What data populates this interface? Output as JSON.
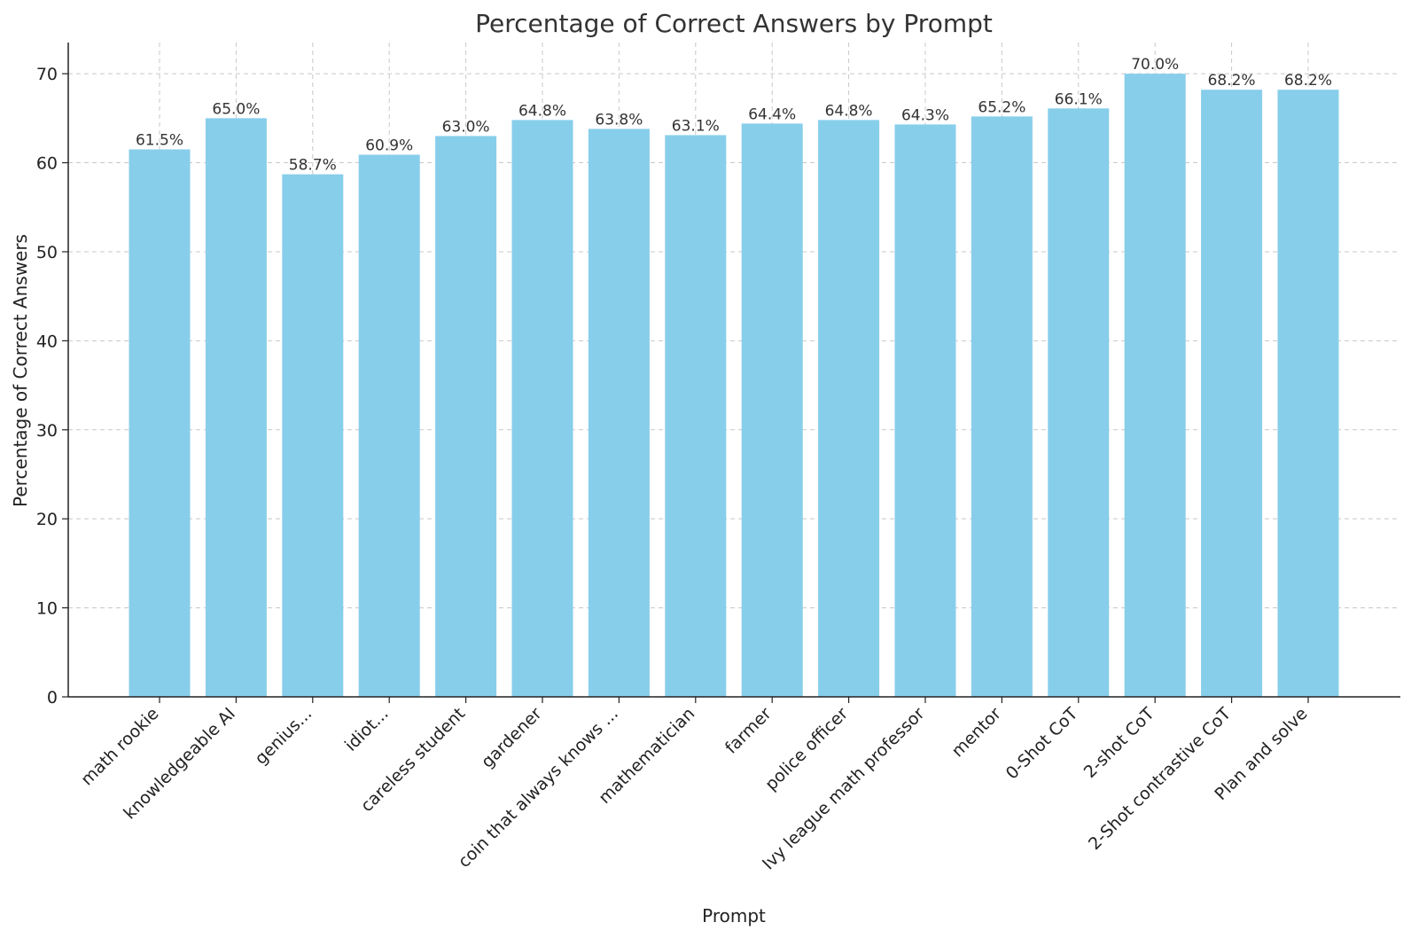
{
  "chart_data": {
    "type": "bar",
    "title": "Percentage of Correct Answers by Prompt",
    "xlabel": "Prompt",
    "ylabel": "Percentage of Correct Answers",
    "categories": [
      "math rookie",
      "knowledgeable AI",
      "genius...",
      "idiot...",
      "careless student",
      "gardener",
      "coin that always knows ...",
      "mathematician",
      "farmer",
      "police officer",
      "Ivy league math professor",
      "mentor",
      "0-Shot CoT",
      "2-shot CoT",
      "2-Shot contrastive CoT",
      "Plan and solve"
    ],
    "values": [
      61.5,
      65.0,
      58.7,
      60.9,
      63.0,
      64.8,
      63.8,
      63.1,
      64.4,
      64.8,
      64.3,
      65.2,
      66.1,
      70.0,
      68.2,
      68.2
    ],
    "data_labels": [
      "61.5%",
      "65.0%",
      "58.7%",
      "60.9%",
      "63.0%",
      "64.8%",
      "63.8%",
      "63.1%",
      "64.4%",
      "64.8%",
      "64.3%",
      "65.2%",
      "66.1%",
      "70.0%",
      "68.2%",
      "68.2%"
    ],
    "ylim": [
      0,
      73.5
    ],
    "yticks": [
      0,
      10,
      20,
      30,
      40,
      50,
      60,
      70
    ],
    "grid": true,
    "bar_color": "#87ceeb"
  }
}
